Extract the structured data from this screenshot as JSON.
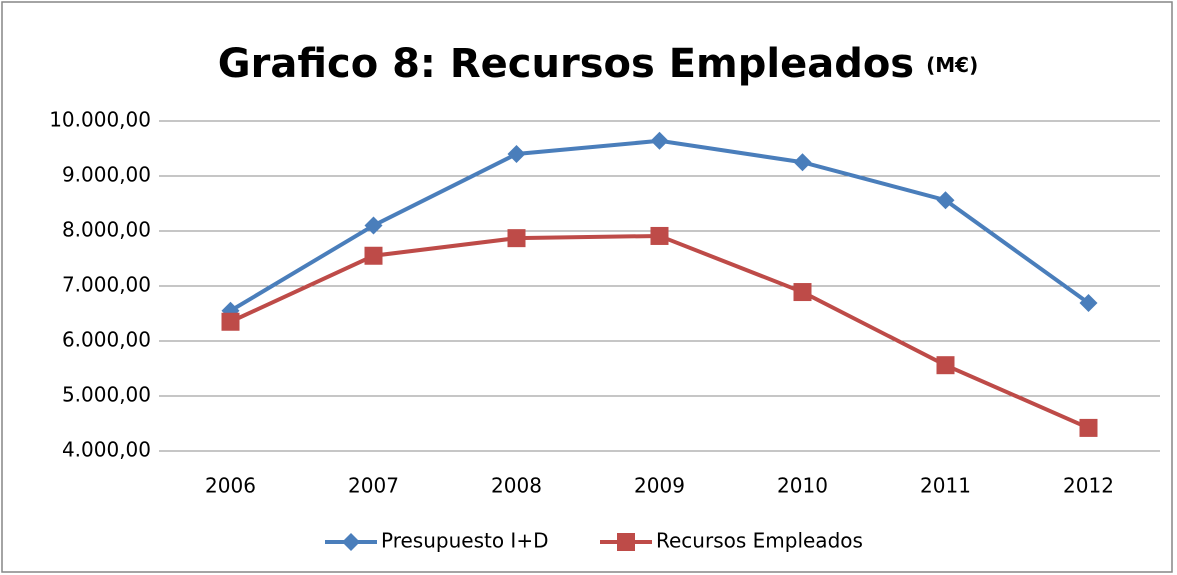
{
  "chart_data": {
    "type": "line",
    "title": "Grafico 8: Recursos Empleados",
    "title_unit": "(M€)",
    "categories": [
      "2006",
      "2007",
      "2008",
      "2009",
      "2010",
      "2011",
      "2012"
    ],
    "series": [
      {
        "name": "Presupuesto I+D",
        "color": "#4a7ebb",
        "marker": "diamond",
        "values": [
          6550,
          8100,
          9400,
          9640,
          9250,
          8560,
          6690
        ]
      },
      {
        "name": "Recursos Empleados",
        "color": "#be4b48",
        "marker": "square",
        "values": [
          6350,
          7550,
          7870,
          7910,
          6890,
          5560,
          4420
        ]
      }
    ],
    "ylim": [
      4000,
      10000
    ],
    "yticks": [
      {
        "value": 4000,
        "label": "4.000,00"
      },
      {
        "value": 5000,
        "label": "5.000,00"
      },
      {
        "value": 6000,
        "label": "6.000,00"
      },
      {
        "value": 7000,
        "label": "7.000,00"
      },
      {
        "value": 8000,
        "label": "8.000,00"
      },
      {
        "value": 9000,
        "label": "9.000,00"
      },
      {
        "value": 10000,
        "label": "10.000,00"
      }
    ],
    "grid": true,
    "legend": "bottom"
  }
}
